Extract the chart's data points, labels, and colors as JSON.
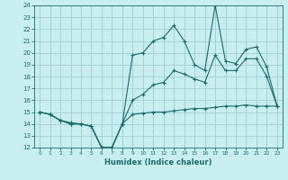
{
  "xlabel": "Humidex (Indice chaleur)",
  "ylabel": "",
  "x": [
    0,
    1,
    2,
    3,
    4,
    5,
    6,
    7,
    8,
    9,
    10,
    11,
    12,
    13,
    14,
    15,
    16,
    17,
    18,
    19,
    20,
    21,
    22,
    23
  ],
  "line_max": [
    15.0,
    14.8,
    14.3,
    14.1,
    14.0,
    13.8,
    12.0,
    12.0,
    14.0,
    19.8,
    20.0,
    21.0,
    21.3,
    22.3,
    21.0,
    19.0,
    18.5,
    24.0,
    19.3,
    19.1,
    20.3,
    20.5,
    18.8,
    15.5
  ],
  "line_min": [
    15.0,
    14.8,
    14.3,
    14.0,
    14.0,
    13.8,
    12.0,
    12.0,
    14.0,
    14.8,
    14.9,
    15.0,
    15.0,
    15.1,
    15.2,
    15.3,
    15.3,
    15.4,
    15.5,
    15.5,
    15.6,
    15.5,
    15.5,
    15.5
  ],
  "line_mean": [
    15.0,
    14.8,
    14.3,
    14.0,
    14.0,
    13.8,
    12.0,
    12.0,
    14.0,
    16.0,
    16.5,
    17.3,
    17.5,
    18.5,
    18.2,
    17.8,
    17.5,
    19.8,
    18.5,
    18.5,
    19.5,
    19.5,
    18.0,
    15.5
  ],
  "color": "#1a6b6b",
  "bg_color": "#c8eef0",
  "grid_color": "#a0cdd0",
  "ylim": [
    12,
    24
  ],
  "xlim": [
    -0.5,
    23.5
  ],
  "yticks": [
    12,
    13,
    14,
    15,
    16,
    17,
    18,
    19,
    20,
    21,
    22,
    23,
    24
  ],
  "xticks": [
    0,
    1,
    2,
    3,
    4,
    5,
    6,
    7,
    8,
    9,
    10,
    11,
    12,
    13,
    14,
    15,
    16,
    17,
    18,
    19,
    20,
    21,
    22,
    23
  ]
}
